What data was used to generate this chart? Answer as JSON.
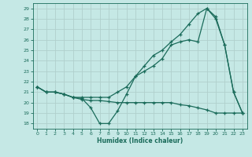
{
  "xlabel": "Humidex (Indice chaleur)",
  "xlim": [
    -0.5,
    23.5
  ],
  "ylim": [
    17.5,
    29.5
  ],
  "yticks": [
    18,
    19,
    20,
    21,
    22,
    23,
    24,
    25,
    26,
    27,
    28,
    29
  ],
  "xticks": [
    0,
    1,
    2,
    3,
    4,
    5,
    6,
    7,
    8,
    9,
    10,
    11,
    12,
    13,
    14,
    15,
    16,
    17,
    18,
    19,
    20,
    21,
    22,
    23
  ],
  "bg_color": "#c5e8e5",
  "grid_color": "#b0d0cc",
  "line_color": "#1a6b5a",
  "line1_x": [
    0,
    1,
    2,
    3,
    4,
    5,
    6,
    7,
    8,
    9,
    10,
    11,
    12,
    13,
    14,
    15,
    16,
    17,
    18,
    19,
    20,
    21,
    22,
    23
  ],
  "line1_y": [
    21.5,
    21.0,
    21.0,
    20.8,
    20.5,
    20.4,
    19.5,
    18.0,
    18.0,
    19.2,
    20.8,
    22.5,
    23.0,
    23.5,
    24.2,
    25.5,
    25.8,
    26.0,
    25.8,
    29.0,
    28.0,
    25.5,
    21.0,
    19.0
  ],
  "line2_x": [
    0,
    1,
    2,
    3,
    4,
    5,
    6,
    7,
    8,
    9,
    10,
    11,
    12,
    13,
    14,
    15,
    16,
    17,
    18,
    19,
    20,
    21,
    22,
    23
  ],
  "line2_y": [
    21.5,
    21.0,
    21.0,
    20.8,
    20.5,
    20.3,
    20.2,
    20.2,
    20.1,
    20.0,
    20.0,
    20.0,
    20.0,
    20.0,
    20.0,
    20.0,
    19.8,
    19.7,
    19.5,
    19.3,
    19.0,
    19.0,
    19.0,
    19.0
  ],
  "line3_x": [
    0,
    1,
    2,
    3,
    4,
    5,
    6,
    7,
    8,
    9,
    10,
    11,
    12,
    13,
    14,
    15,
    16,
    17,
    18,
    19,
    20,
    21,
    22,
    23
  ],
  "line3_y": [
    21.5,
    21.0,
    21.0,
    20.8,
    20.5,
    20.5,
    20.5,
    20.5,
    20.5,
    21.0,
    21.5,
    22.5,
    23.5,
    24.5,
    25.0,
    25.8,
    26.5,
    27.5,
    28.5,
    29.0,
    28.2,
    25.5,
    21.0,
    19.0
  ]
}
